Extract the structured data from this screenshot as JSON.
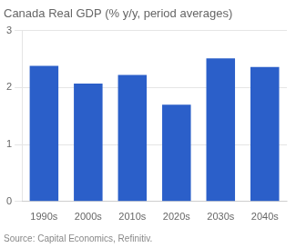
{
  "chart_data": {
    "type": "bar",
    "title": "Canada Real GDP (% y/y, period averages)",
    "categories": [
      "1990s",
      "2000s",
      "2010s",
      "2020s",
      "2030s",
      "2040s"
    ],
    "values": [
      2.38,
      2.07,
      2.22,
      1.7,
      2.51,
      2.36
    ],
    "color": "#2B5FC9",
    "ylim": [
      0,
      3
    ],
    "yticks": [
      0,
      1,
      2,
      3
    ],
    "grid": true,
    "annotations": [
      "Source: Capital Economics, Refinitiv."
    ]
  }
}
